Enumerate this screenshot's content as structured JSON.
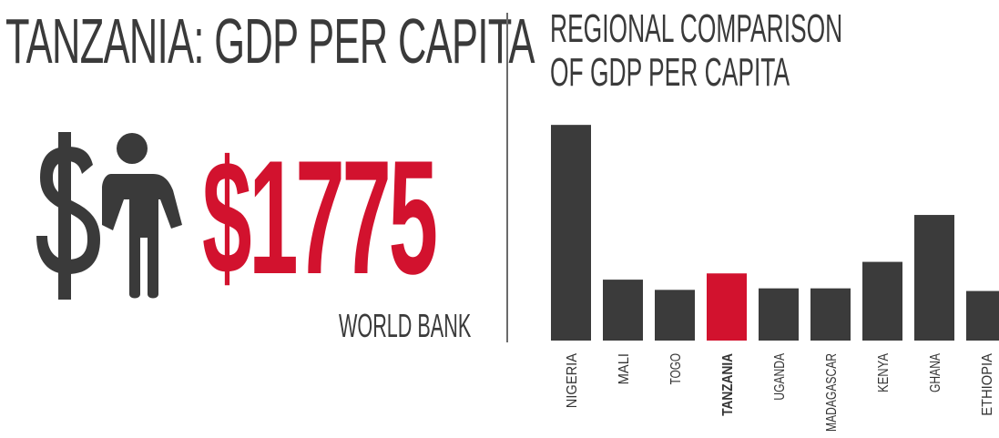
{
  "left_panel": {
    "title": "TANZANIA: GDP PER CAPITA",
    "value": "$1775",
    "source": "WORLD BANK",
    "icon": "dollar-person-icon"
  },
  "colors": {
    "text": "#3a3a3a",
    "bar": "#3b3b3b",
    "highlight": "#d2122e",
    "divider": "#6b6b6b"
  },
  "chart_data": {
    "type": "bar",
    "title": "REGIONAL COMPARISON OF GDP PER CAPITA",
    "title_lines": [
      "REGIONAL COMPARISON",
      "OF GDP PER CAPITA"
    ],
    "categories": [
      "NIGERIA",
      "MALI",
      "TOGO",
      "TANZANIA",
      "UGANDA",
      "MADAGASCAR",
      "KENYA",
      "GHANA",
      "ETHIOPIA"
    ],
    "values": [
      5700,
      1610,
      1340,
      1775,
      1380,
      1380,
      2080,
      3320,
      1310
    ],
    "highlight": "TANZANIA",
    "ylim": [
      0,
      5800
    ],
    "grid": false,
    "legend": "none",
    "axis": "hidden"
  }
}
